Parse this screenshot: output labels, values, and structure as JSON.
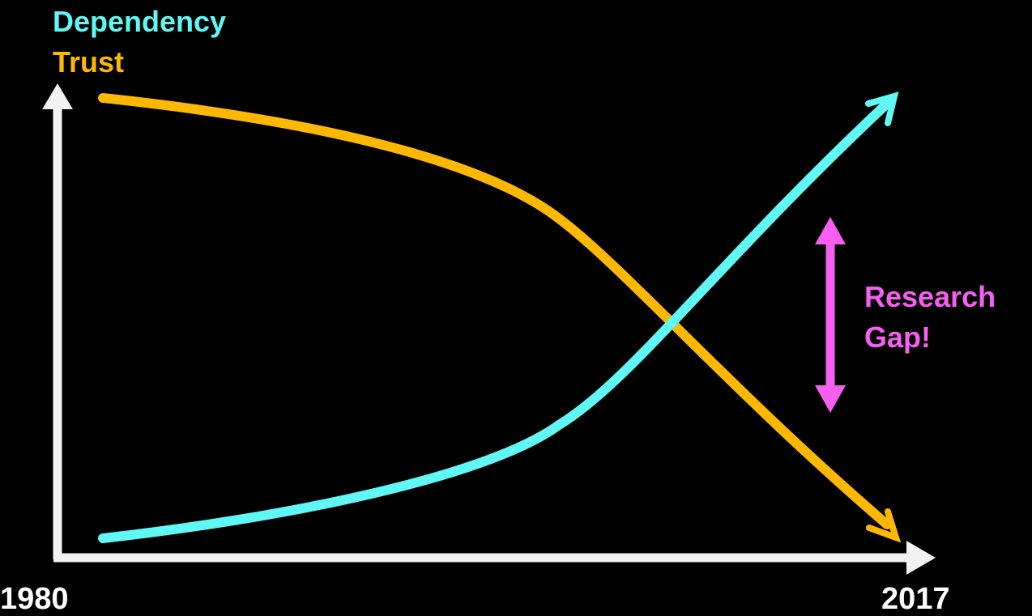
{
  "legend": {
    "dependency_label": "Dependency",
    "trust_label": "Trust"
  },
  "axis": {
    "start_year": "1980",
    "end_year": "2017"
  },
  "annotation": {
    "line1": "Research",
    "line2": "Gap!"
  },
  "colors": {
    "background": "#000000",
    "axis": "#f2f2f2",
    "dependency": "#5ff8f5",
    "trust": "#ffb800",
    "gap": "#f65ff0"
  },
  "series": [
    {
      "name": "Dependency",
      "trend": "increasing"
    },
    {
      "name": "Trust",
      "trend": "decreasing"
    }
  ]
}
